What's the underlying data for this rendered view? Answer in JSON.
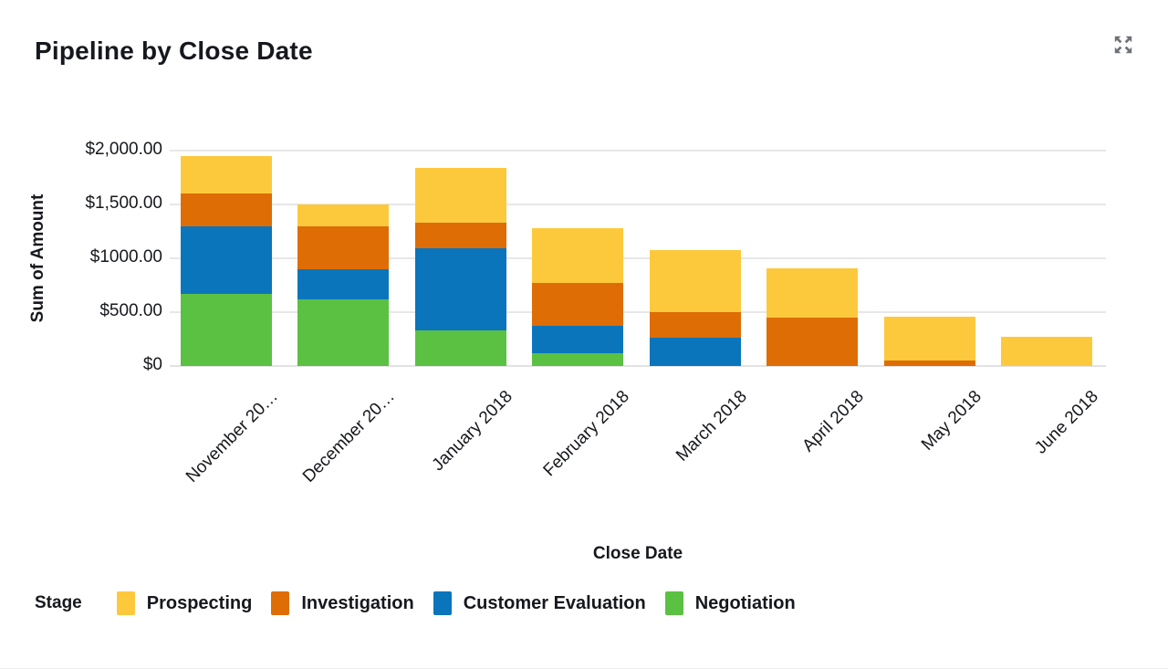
{
  "header": {
    "expand_icon": "expand"
  },
  "chart_data": {
    "type": "bar",
    "stacked": true,
    "title": "Pipeline by Close Date",
    "xlabel": "Close Date",
    "ylabel": "Sum of Amount",
    "ylim": [
      0,
      2000
    ],
    "grid": true,
    "legend_title": "Stage",
    "legend_position": "bottom",
    "ytick_labels_bottom_to_top": [
      "$0",
      "$500.00",
      "$1000.00",
      "$1,500.00",
      "$2,000.00"
    ],
    "categories": [
      "November 20…",
      "December 20…",
      "January 2018",
      "February 2018",
      "March 2018",
      "April 2018",
      "May 2018",
      "June 2018"
    ],
    "series": [
      {
        "name": "Prospecting",
        "color": "#FDC93C",
        "values": [
          350,
          200,
          510,
          510,
          580,
          460,
          410,
          270
        ]
      },
      {
        "name": "Investigation",
        "color": "#DE6D05",
        "values": [
          300,
          400,
          240,
          400,
          240,
          450,
          50,
          0
        ]
      },
      {
        "name": "Customer Evaluation",
        "color": "#0B75BB",
        "values": [
          630,
          280,
          760,
          250,
          260,
          0,
          0,
          0
        ]
      },
      {
        "name": "Negotiation",
        "color": "#5BC142",
        "values": [
          670,
          620,
          330,
          120,
          0,
          0,
          0,
          0
        ]
      }
    ],
    "stack_order_bottom_to_top": [
      "Negotiation",
      "Customer Evaluation",
      "Investigation",
      "Prospecting"
    ],
    "totals": [
      1950,
      1500,
      1840,
      1280,
      1080,
      910,
      460,
      270
    ]
  },
  "colors": {
    "grid": "#e7e7e7",
    "text": "#16181d",
    "icon_gray": "#6f7379"
  }
}
